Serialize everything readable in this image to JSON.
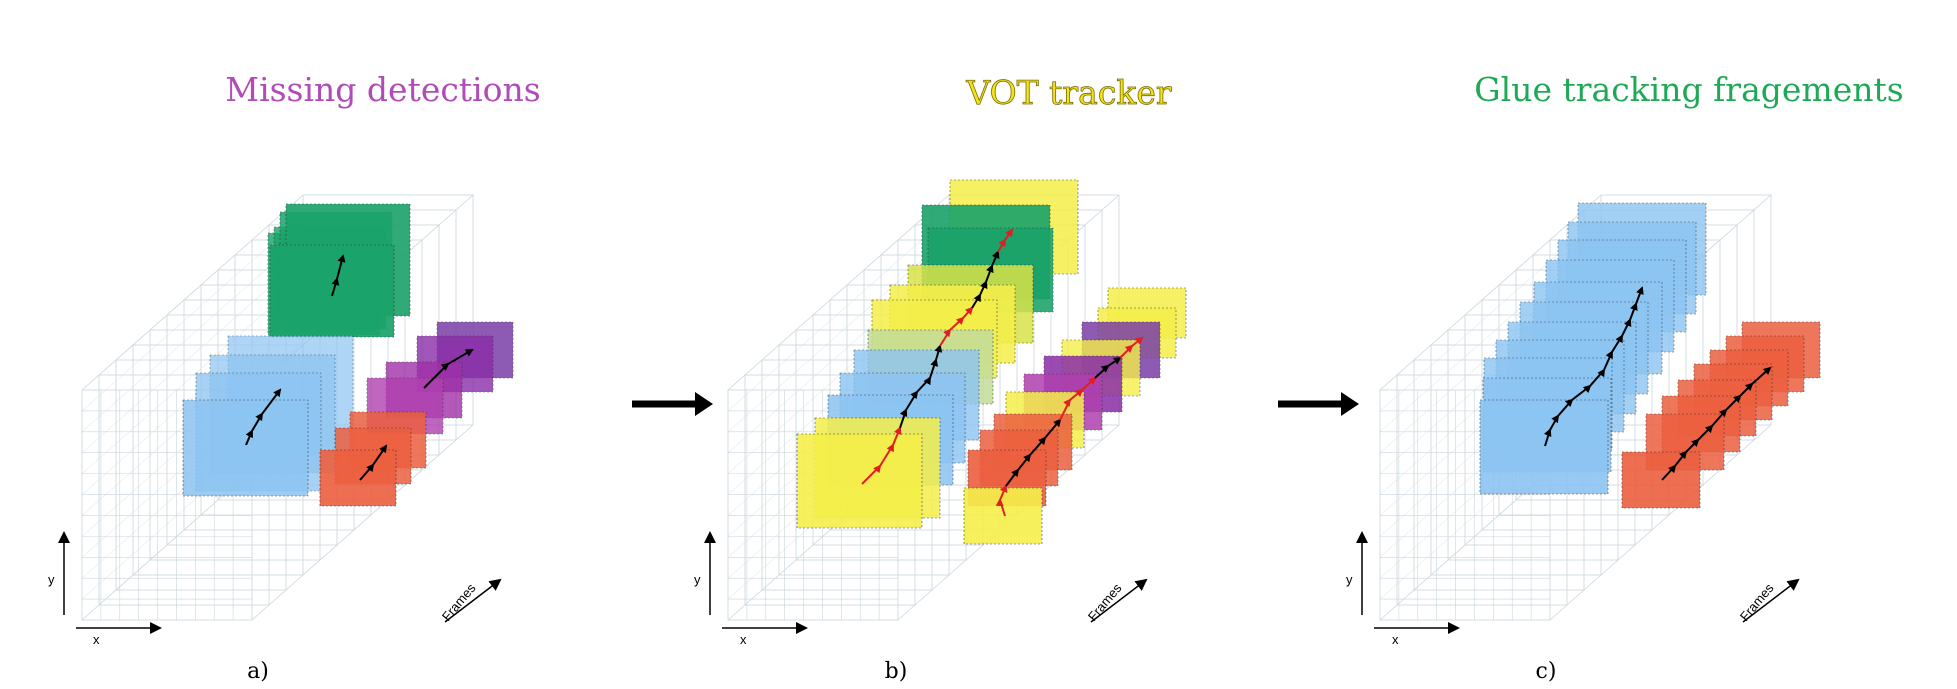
{
  "panels": [
    {
      "title": "Missing detections",
      "title_color": "#b04bb8",
      "caption": "a)",
      "axis": {
        "x": "x",
        "y": "y",
        "z": "Frames"
      },
      "tracks": [
        {
          "name": "green",
          "fill": "#1aa36a",
          "frames": 4
        },
        {
          "name": "blue",
          "fill": "#8cc4f2",
          "frames": 4
        },
        {
          "name": "purple",
          "fill": "#8a2da8",
          "frames": 4
        },
        {
          "name": "orange",
          "fill": "#ec5f3f",
          "frames": 3
        }
      ]
    },
    {
      "title": "VOT tracker",
      "title_color": "#f2e418",
      "caption": "b)",
      "axis": {
        "x": "x",
        "y": "y",
        "z": "Frames"
      },
      "tracks": [
        {
          "name": "green",
          "fill": "#1aa36a",
          "frames": 4
        },
        {
          "name": "blue",
          "fill": "#8cc4f2",
          "frames": 4
        },
        {
          "name": "purple",
          "fill": "#8a2da8",
          "frames": 4
        },
        {
          "name": "orange",
          "fill": "#ec5f3f",
          "frames": 3
        },
        {
          "name": "yellow-vot",
          "fill": "#f5ef4a",
          "frames": 12
        }
      ]
    },
    {
      "title": "Glue tracking fragements",
      "title_color": "#1fa957",
      "caption": "c)",
      "axis": {
        "x": "x",
        "y": "y",
        "z": "Frames"
      },
      "tracks": [
        {
          "name": "blue",
          "fill": "#8cc4f2",
          "frames": 11
        },
        {
          "name": "orange",
          "fill": "#ec5f3f",
          "frames": 8
        }
      ]
    }
  ],
  "colors": {
    "green": "#1aa36a",
    "blue": "#8cc4f2",
    "purple": "#8a2da8",
    "orange": "#ec5f3f",
    "yellow": "#f5ef4a",
    "grid": "#c9d6dd",
    "trajectory": "#000000",
    "vot_trajectory": "#e02020"
  }
}
